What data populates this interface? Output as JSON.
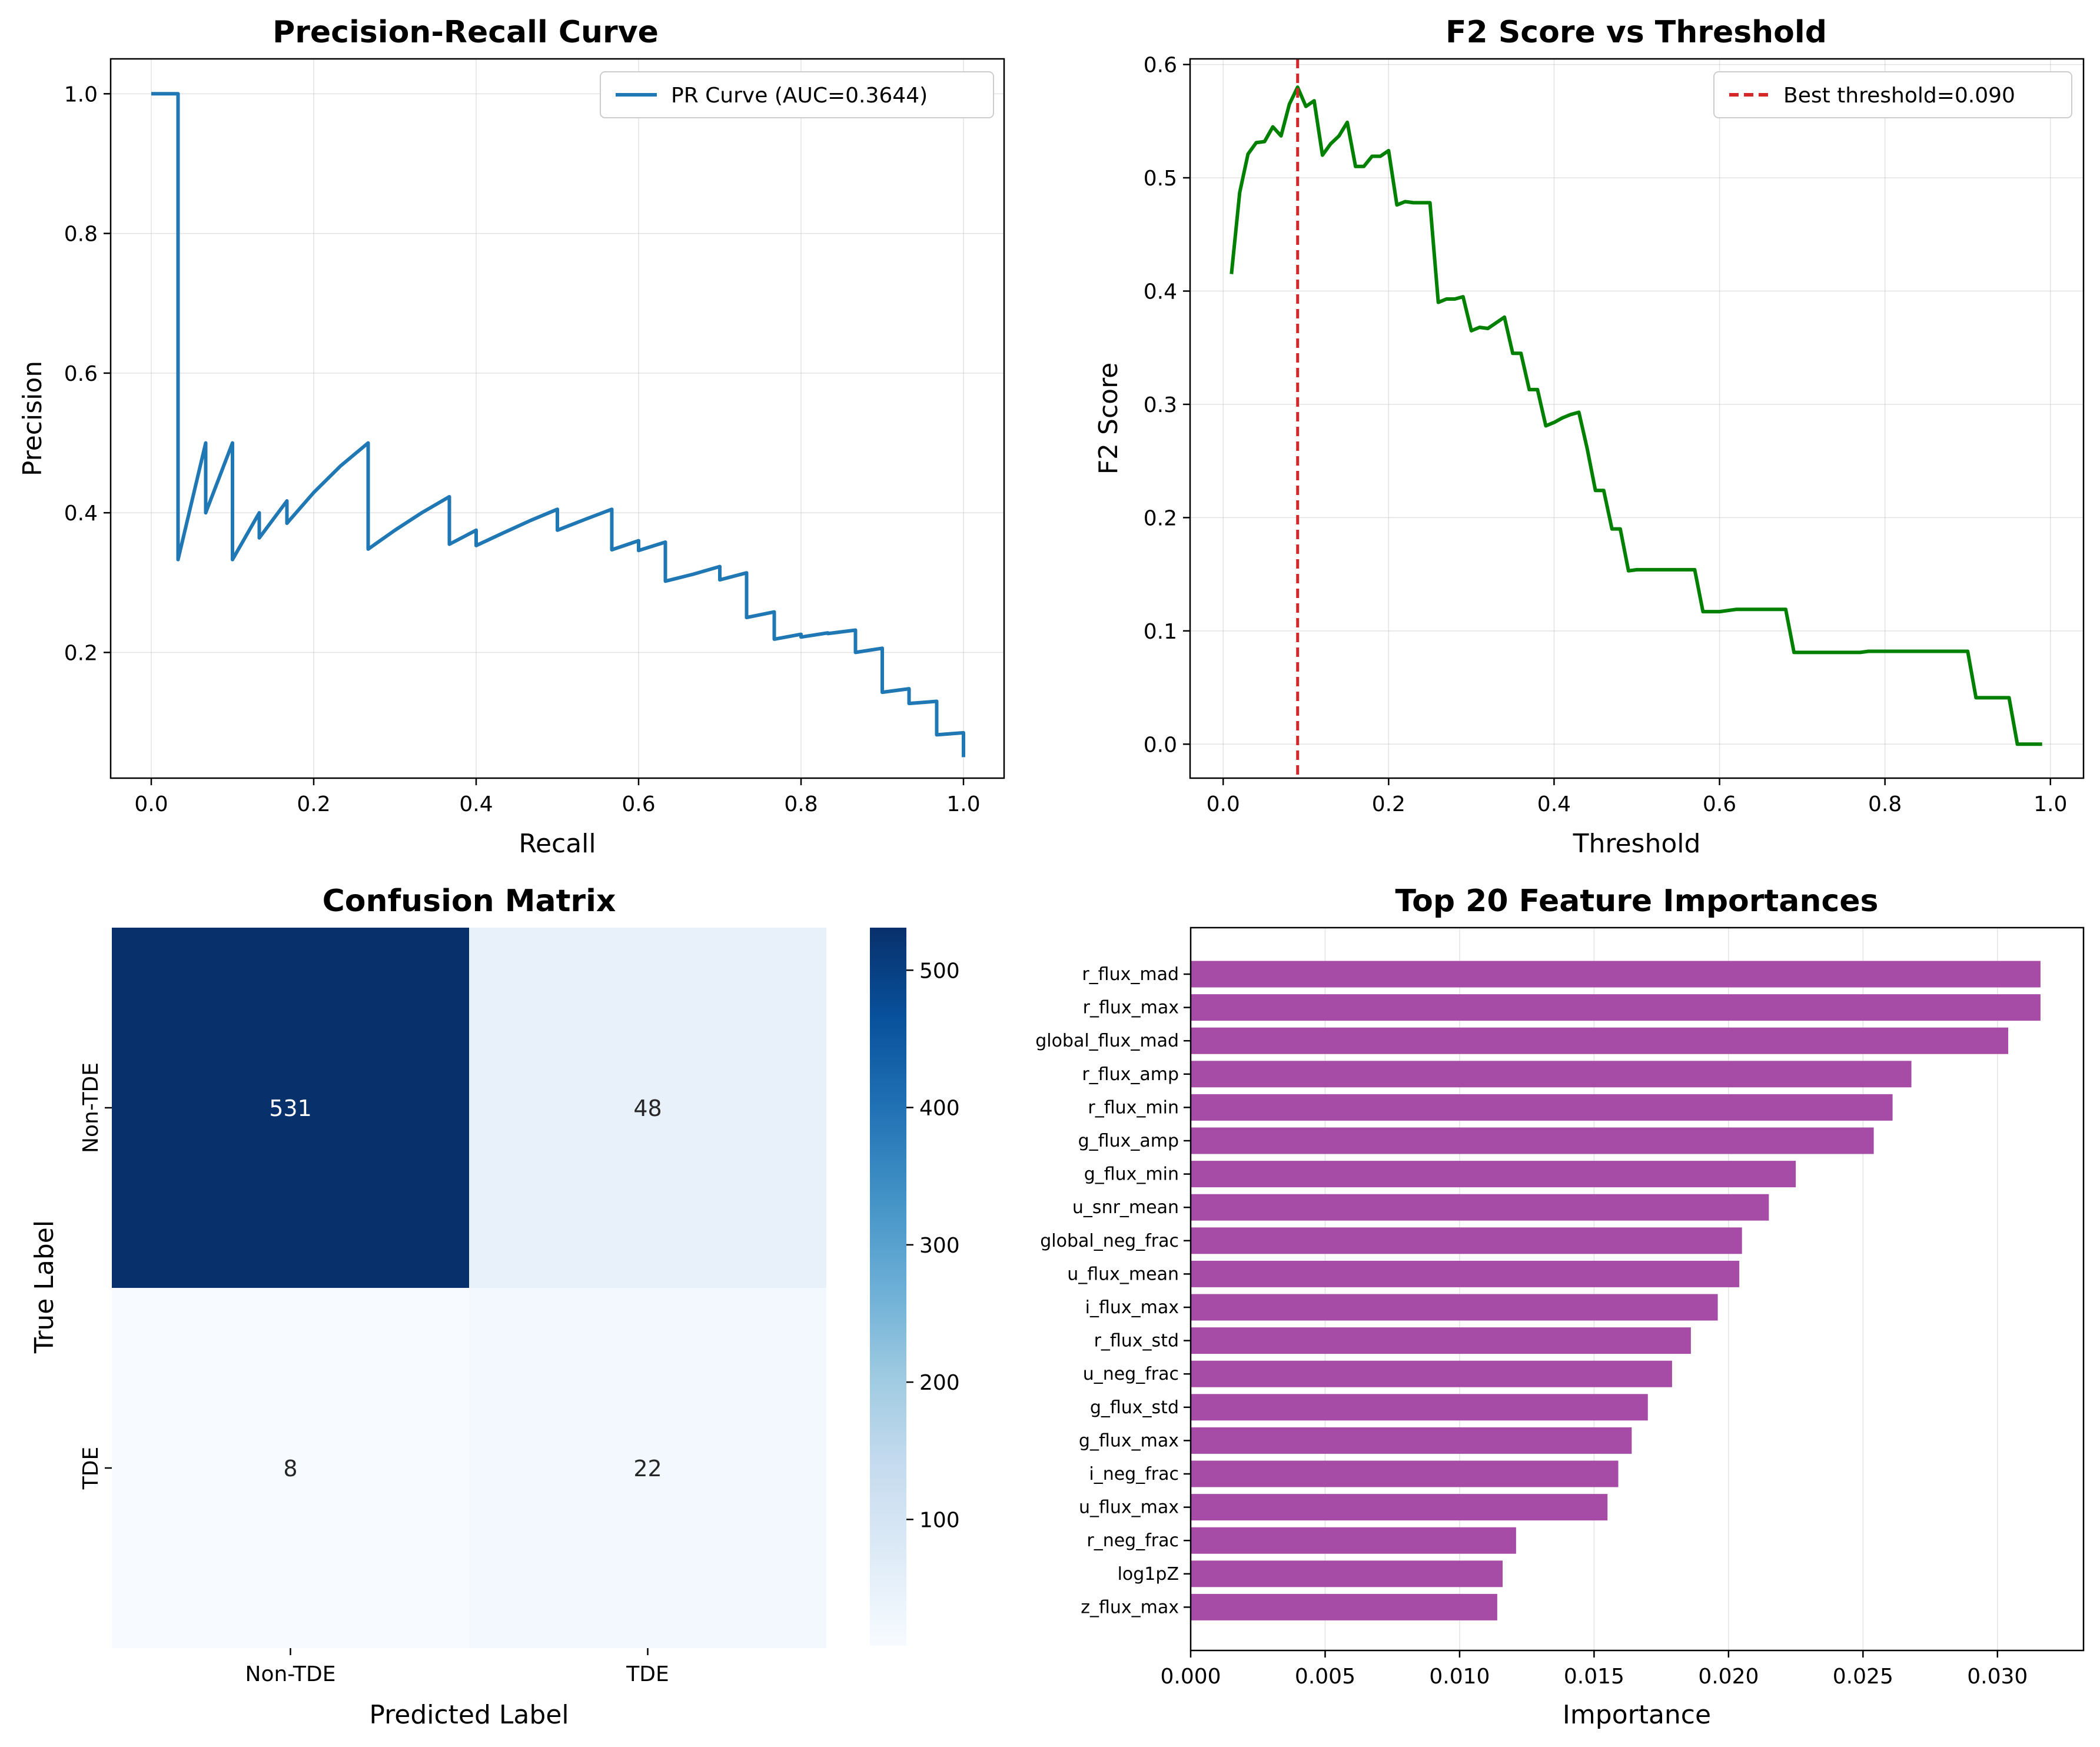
{
  "chart_data": [
    {
      "type": "line",
      "title": "Precision-Recall Curve",
      "xlabel": "Recall",
      "ylabel": "Precision",
      "xlim": [
        -0.05,
        1.05
      ],
      "ylim": [
        0.02,
        1.05
      ],
      "xticks": [
        "0.0",
        "0.2",
        "0.4",
        "0.6",
        "0.8",
        "1.0"
      ],
      "yticks": [
        "0.2",
        "0.4",
        "0.6",
        "0.8",
        "1.0"
      ],
      "grid": true,
      "legend_position": "upper-right",
      "color": "#1f77b4",
      "series": [
        {
          "name": "PR Curve (AUC=0.3644)",
          "x": [
            0.0,
            0.033,
            0.033,
            0.067,
            0.067,
            0.1,
            0.1,
            0.133,
            0.133,
            0.167,
            0.167,
            0.2,
            0.233,
            0.267,
            0.267,
            0.3,
            0.333,
            0.367,
            0.367,
            0.4,
            0.4,
            0.433,
            0.467,
            0.5,
            0.5,
            0.533,
            0.567,
            0.567,
            0.6,
            0.6,
            0.633,
            0.633,
            0.667,
            0.7,
            0.7,
            0.733,
            0.733,
            0.767,
            0.767,
            0.8,
            0.8,
            0.833,
            0.833,
            0.867,
            0.867,
            0.9,
            0.9,
            0.933,
            0.933,
            0.967,
            0.967,
            1.0,
            1.0
          ],
          "y": [
            1.0,
            1.0,
            0.333,
            0.5,
            0.4,
            0.5,
            0.333,
            0.4,
            0.364,
            0.417,
            0.385,
            0.429,
            0.467,
            0.5,
            0.348,
            0.375,
            0.4,
            0.423,
            0.355,
            0.375,
            0.353,
            0.371,
            0.389,
            0.405,
            0.375,
            0.39,
            0.405,
            0.347,
            0.36,
            0.346,
            0.358,
            0.302,
            0.312,
            0.323,
            0.304,
            0.314,
            0.25,
            0.258,
            0.219,
            0.226,
            0.222,
            0.228,
            0.227,
            0.232,
            0.2,
            0.206,
            0.143,
            0.148,
            0.127,
            0.13,
            0.082,
            0.085,
            0.05
          ]
        }
      ]
    },
    {
      "type": "line",
      "title": "F2 Score vs Threshold",
      "xlabel": "Threshold",
      "ylabel": "F2 Score",
      "xlim": [
        -0.04,
        1.04
      ],
      "ylim": [
        -0.03,
        0.605
      ],
      "xticks": [
        "0.0",
        "0.2",
        "0.4",
        "0.6",
        "0.8",
        "1.0"
      ],
      "yticks": [
        "0.0",
        "0.1",
        "0.2",
        "0.3",
        "0.4",
        "0.5",
        "0.6"
      ],
      "grid": true,
      "legend_position": "upper-right",
      "color": "#008000",
      "series": [
        {
          "name": "",
          "x": [
            0.01,
            0.02,
            0.03,
            0.04,
            0.05,
            0.06,
            0.07,
            0.08,
            0.09,
            0.1,
            0.11,
            0.12,
            0.13,
            0.14,
            0.15,
            0.16,
            0.17,
            0.18,
            0.19,
            0.2,
            0.21,
            0.22,
            0.23,
            0.24,
            0.25,
            0.26,
            0.27,
            0.28,
            0.29,
            0.3,
            0.31,
            0.32,
            0.33,
            0.34,
            0.35,
            0.36,
            0.37,
            0.38,
            0.39,
            0.4,
            0.41,
            0.42,
            0.43,
            0.44,
            0.45,
            0.46,
            0.47,
            0.48,
            0.49,
            0.5,
            0.57,
            0.58,
            0.6,
            0.62,
            0.66,
            0.67,
            0.68,
            0.69,
            0.77,
            0.78,
            0.9,
            0.91,
            0.94,
            0.95,
            0.96,
            0.99
          ],
          "y": [
            0.415,
            0.487,
            0.521,
            0.531,
            0.532,
            0.545,
            0.537,
            0.565,
            0.58,
            0.563,
            0.568,
            0.52,
            0.53,
            0.537,
            0.549,
            0.51,
            0.51,
            0.519,
            0.519,
            0.524,
            0.476,
            0.479,
            0.478,
            0.478,
            0.478,
            0.39,
            0.393,
            0.393,
            0.395,
            0.365,
            0.368,
            0.367,
            0.372,
            0.377,
            0.345,
            0.345,
            0.313,
            0.313,
            0.281,
            0.284,
            0.288,
            0.291,
            0.293,
            0.261,
            0.224,
            0.224,
            0.19,
            0.19,
            0.153,
            0.154,
            0.154,
            0.117,
            0.117,
            0.119,
            0.119,
            0.119,
            0.119,
            0.081,
            0.081,
            0.082,
            0.082,
            0.041,
            0.041,
            0.041,
            0.0,
            0.0
          ]
        }
      ],
      "threshold_line": {
        "x": 0.09,
        "name": "Best threshold=0.090",
        "color": "#d62728"
      }
    },
    {
      "type": "heatmap",
      "title": "Confusion Matrix",
      "xlabel": "Predicted Label",
      "ylabel": "True Label",
      "x_categories": [
        "Non-TDE",
        "TDE"
      ],
      "y_categories": [
        "Non-TDE",
        "TDE"
      ],
      "values": [
        [
          531,
          48
        ],
        [
          8,
          22
        ]
      ],
      "colorbar_ticks": [
        "100",
        "200",
        "300",
        "400",
        "500"
      ],
      "colorbar_range": [
        8,
        531
      ],
      "colormap": "Blues"
    },
    {
      "type": "bar",
      "orientation": "horizontal",
      "title": "Top 20 Feature Importances",
      "xlabel": "Importance",
      "xlim": [
        0.0,
        0.0332
      ],
      "xticks": [
        "0.000",
        "0.005",
        "0.010",
        "0.015",
        "0.020",
        "0.025",
        "0.030"
      ],
      "grid": true,
      "color": "#a64ca6",
      "categories": [
        "r_flux_mad",
        "r_flux_max",
        "global_flux_mad",
        "r_flux_amp",
        "r_flux_min",
        "g_flux_amp",
        "g_flux_min",
        "u_snr_mean",
        "global_neg_frac",
        "u_flux_mean",
        "i_flux_max",
        "r_flux_std",
        "u_neg_frac",
        "g_flux_std",
        "g_flux_max",
        "i_neg_frac",
        "u_flux_max",
        "r_neg_frac",
        "log1pZ",
        "z_flux_max"
      ],
      "values": [
        0.0316,
        0.0316,
        0.0304,
        0.0268,
        0.0261,
        0.0254,
        0.0225,
        0.0215,
        0.0205,
        0.0204,
        0.0196,
        0.0186,
        0.0179,
        0.017,
        0.0164,
        0.0159,
        0.0155,
        0.0121,
        0.0116,
        0.0114
      ]
    }
  ]
}
